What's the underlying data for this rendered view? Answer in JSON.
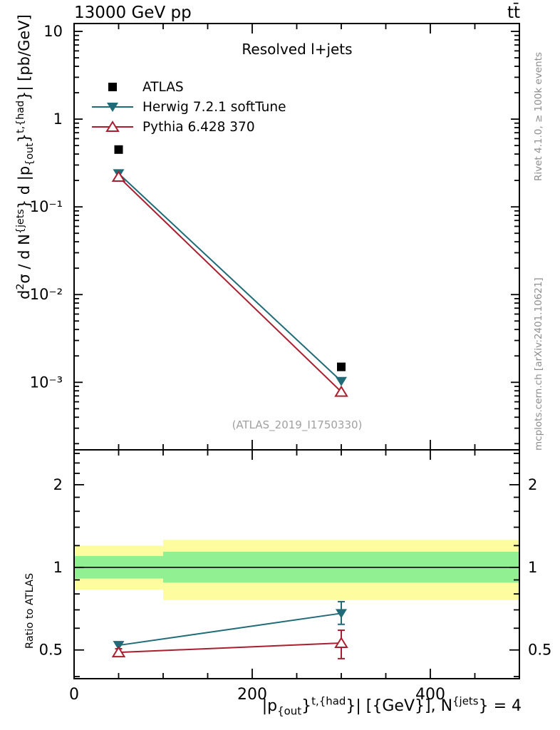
{
  "header": {
    "left_title": "13000 GeV pp",
    "right_title": "tt̄"
  },
  "panel_title": "Resolved l+jets",
  "watermark": "(ATLAS_2019_I1750330)",
  "side_notes": {
    "top": "Rivet 4.1.0, ≥ 100k events",
    "bottom": "mcplots.cern.ch [arXiv:2401.10621]"
  },
  "colors": {
    "atlas": "#000000",
    "herwig": "#1f6c78",
    "pythia": "#a8202f",
    "band_green": "#90f092",
    "band_yellow": "#fdfda0",
    "frame": "#000000",
    "gray_text": "#8e8e8e"
  },
  "legend": [
    {
      "label": "ATLAS",
      "marker": "square",
      "color": "#000000",
      "line": false
    },
    {
      "label": "Herwig 7.2.1 softTune",
      "marker": "triangle-down",
      "color": "#1f6c78",
      "line": true
    },
    {
      "label": "Pythia 6.428 370",
      "marker": "triangle-up-open",
      "color": "#a8202f",
      "line": true
    }
  ],
  "axis_titles": {
    "y_parts": [
      {
        "t": "n",
        "s": "d"
      },
      {
        "t": "sup",
        "s": "2"
      },
      {
        "t": "n",
        "s": "σ /  d N"
      },
      {
        "t": "sup",
        "s": "{jets"
      },
      {
        "t": "n",
        "s": "} d |p"
      },
      {
        "t": "sub",
        "s": "{out"
      },
      {
        "t": "n",
        "s": "}"
      },
      {
        "t": "sup",
        "s": "t,{had"
      },
      {
        "t": "n",
        "s": "}| [pb/GeV]"
      }
    ],
    "x_parts": [
      {
        "t": "n",
        "s": "|p"
      },
      {
        "t": "sub",
        "s": "{out"
      },
      {
        "t": "n",
        "s": "}"
      },
      {
        "t": "sup",
        "s": "t,{had"
      },
      {
        "t": "n",
        "s": "}| [{GeV}], N"
      },
      {
        "t": "sup",
        "s": "{jets"
      },
      {
        "t": "n",
        "s": "} = 4"
      }
    ],
    "ratio_y": "Ratio to ATLAS"
  },
  "chart_data": [
    {
      "type": "line",
      "panel": "main",
      "title": "Resolved l+jets",
      "yscale": "log",
      "xlim": [
        0,
        500
      ],
      "ylim": [
        0.00017,
        12.3
      ],
      "x_ticks_major": [
        {
          "v": 0,
          "label": "0"
        },
        {
          "v": 200,
          "label": "200"
        },
        {
          "v": 400,
          "label": "400"
        }
      ],
      "x_ticks_minor": [
        50,
        100,
        150,
        250,
        300,
        350,
        450,
        500
      ],
      "y_ticks_major": [
        {
          "v": 10,
          "label": "10"
        },
        {
          "v": 1,
          "label": "1"
        },
        {
          "v": 0.1,
          "label": "10⁻¹"
        },
        {
          "v": 0.01,
          "label": "10⁻²"
        },
        {
          "v": 0.001,
          "label": "10⁻³"
        }
      ],
      "series": [
        {
          "name": "ATLAS",
          "marker": "square",
          "color": "#000000",
          "line": false,
          "x": [
            50,
            300
          ],
          "y": [
            0.45,
            0.0015
          ]
        },
        {
          "name": "Herwig 7.2.1 softTune",
          "marker": "triangle-down",
          "color": "#1f6c78",
          "line": true,
          "x": [
            50,
            300
          ],
          "y": [
            0.24,
            0.00103
          ]
        },
        {
          "name": "Pythia 6.428 370",
          "marker": "triangle-up-open",
          "color": "#a8202f",
          "line": true,
          "x": [
            50,
            300
          ],
          "y": [
            0.22,
            0.00078
          ]
        }
      ]
    },
    {
      "type": "line",
      "panel": "ratio",
      "ylabel": "Ratio to ATLAS",
      "yscale": "log",
      "xlim": [
        0,
        500
      ],
      "ylim": [
        0.393,
        2.68
      ],
      "reference_line": 1,
      "y_ticks_major": [
        {
          "v": 0.5,
          "label": "0.5"
        },
        {
          "v": 1,
          "label": "1"
        },
        {
          "v": 2,
          "label": "2"
        }
      ],
      "y_ticks_minor": [
        0.4,
        0.6,
        0.7,
        0.8,
        0.9,
        1.2,
        1.4,
        1.6,
        1.8,
        2.2,
        2.4,
        2.6
      ],
      "bands": [
        {
          "x": [
            0,
            100
          ],
          "green": [
            0.91,
            1.1
          ],
          "yellow": [
            0.83,
            1.2
          ]
        },
        {
          "x": [
            100,
            500
          ],
          "green": [
            0.88,
            1.14
          ],
          "yellow": [
            0.76,
            1.26
          ]
        }
      ],
      "series": [
        {
          "name": "Herwig 7.2.1 softTune",
          "marker": "triangle-down",
          "color": "#1f6c78",
          "line": true,
          "x": [
            50,
            300
          ],
          "y": [
            0.52,
            0.68
          ],
          "y_err_lo": [
            0.015,
            0.06
          ],
          "y_err_hi": [
            0.015,
            0.07
          ]
        },
        {
          "name": "Pythia 6.428 370",
          "marker": "triangle-up-open",
          "color": "#a8202f",
          "line": true,
          "x": [
            50,
            300
          ],
          "y": [
            0.49,
            0.53
          ],
          "y_err_lo": [
            0.015,
            0.065
          ],
          "y_err_hi": [
            0.015,
            0.06
          ]
        }
      ]
    }
  ]
}
